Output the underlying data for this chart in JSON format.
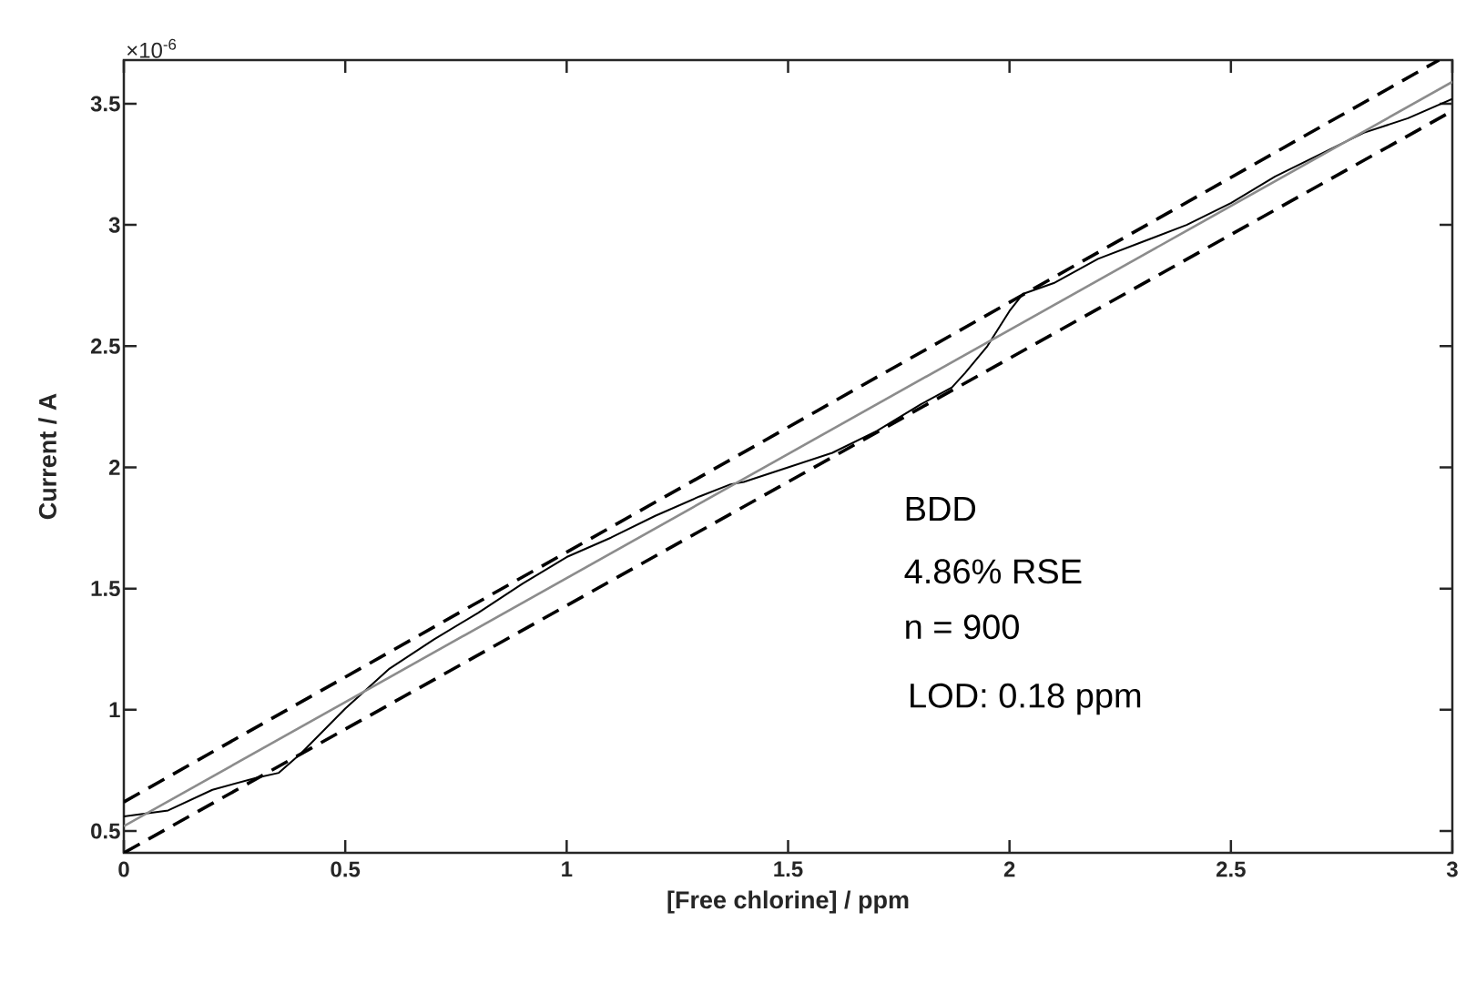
{
  "chart_data": {
    "type": "line",
    "xlabel": "[Free chlorine] / ppm",
    "ylabel": "Current / A",
    "xlim": [
      0,
      3
    ],
    "ylim": [
      0.41,
      3.68
    ],
    "xticks": [
      0,
      0.5,
      1,
      1.5,
      2,
      2.5,
      3
    ],
    "yticks": [
      0.5,
      1,
      1.5,
      2,
      2.5,
      3,
      3.5
    ],
    "grid": false,
    "marker": "none",
    "annotations": [
      "×10$^{-6}$",
      "BDD",
      "4.86% RSE",
      "n = 900",
      "LOD: 0.18 ppm"
    ],
    "series": [
      {
        "color": "#000000",
        "line_style": "solid",
        "x": [
          0,
          0.1,
          0.2,
          0.3,
          0.35,
          0.4,
          0.5,
          0.6,
          0.7,
          0.8,
          0.9,
          1.0,
          1.1,
          1.2,
          1.3,
          1.37,
          1.4,
          1.5,
          1.6,
          1.7,
          1.8,
          1.87,
          1.9,
          1.95,
          2.0,
          2.03,
          2.1,
          2.2,
          2.3,
          2.4,
          2.5,
          2.6,
          2.7,
          2.8,
          2.9,
          3.0
        ],
        "values": [
          0.56,
          0.585,
          0.67,
          0.72,
          0.74,
          0.82,
          1.005,
          1.17,
          1.29,
          1.4,
          1.52,
          1.63,
          1.71,
          1.8,
          1.88,
          1.93,
          1.94,
          2.0,
          2.06,
          2.15,
          2.26,
          2.33,
          2.39,
          2.5,
          2.645,
          2.715,
          2.76,
          2.86,
          2.93,
          3.0,
          3.09,
          3.2,
          3.29,
          3.38,
          3.44,
          3.52
        ]
      },
      {
        "color": "#8c8c8c",
        "line_style": "solid",
        "x": [
          0,
          3
        ],
        "values": [
          0.52,
          3.59
        ]
      },
      {
        "color": "#000000",
        "line_style": "dashed",
        "x": [
          0,
          2.97
        ],
        "values": [
          0.62,
          3.68
        ]
      },
      {
        "color": "#000000",
        "line_style": "dashed",
        "x": [
          0,
          3
        ],
        "values": [
          0.41,
          3.47
        ]
      }
    ]
  }
}
